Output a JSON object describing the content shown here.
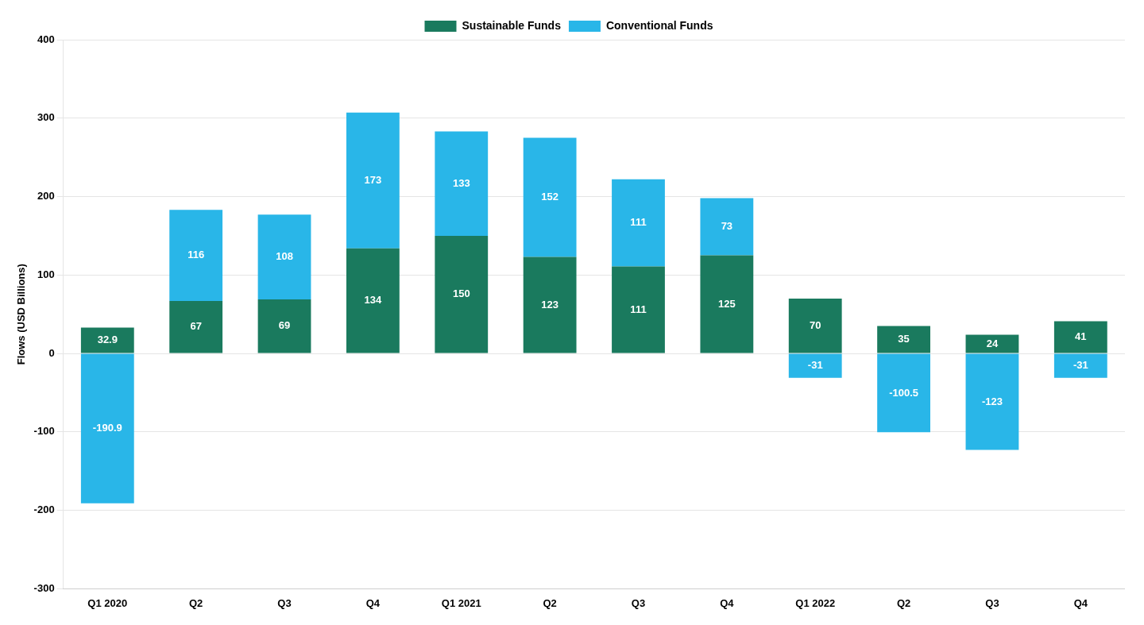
{
  "chart_data": {
    "type": "bar",
    "ylabel": "Flows (USD Billions)",
    "categories": [
      "Q1 2020",
      "Q2",
      "Q3",
      "Q4",
      "Q1 2021",
      "Q2",
      "Q3",
      "Q4",
      "Q1 2022",
      "Q2",
      "Q3",
      "Q4"
    ],
    "series": [
      {
        "name": "Sustainable Funds",
        "color": "#1a7a5e",
        "values": [
          32.9,
          67,
          69,
          134,
          150,
          123,
          111,
          125,
          70,
          35,
          24,
          41
        ]
      },
      {
        "name": "Conventional Funds",
        "color": "#29b6e8",
        "values": [
          -190.9,
          116,
          108,
          173,
          133,
          152,
          111,
          73,
          -31,
          -100.5,
          -123,
          -31
        ]
      }
    ],
    "stacked": true,
    "ylim": [
      -300,
      400
    ],
    "yticks": [
      -300,
      -200,
      -100,
      0,
      100,
      200,
      300,
      400
    ],
    "grid": true,
    "legend": "top",
    "data_labels": true
  }
}
